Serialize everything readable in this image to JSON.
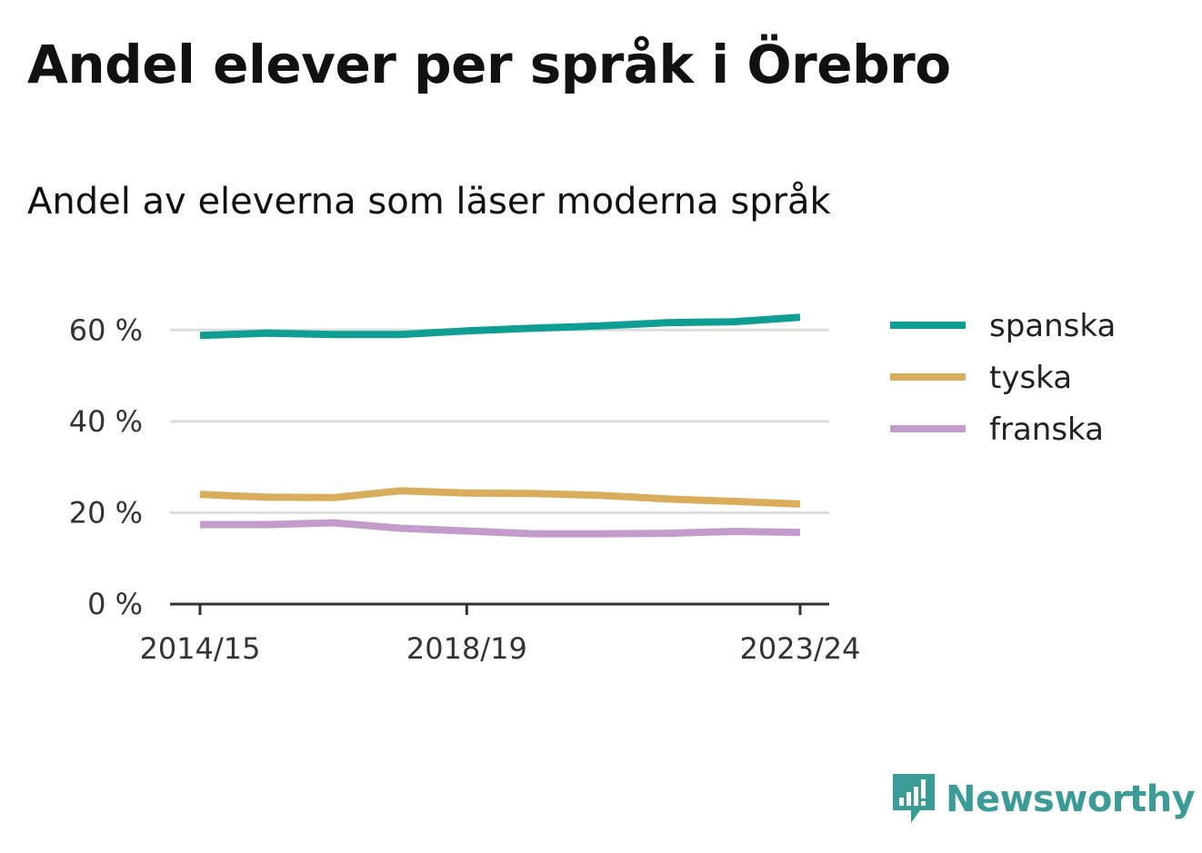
{
  "title": "Andel elever per språk i Örebro",
  "subtitle": "Andel av eleverna som läser moderna språk",
  "brand": {
    "name": "Newsworthy",
    "color": "#3b9b96",
    "icon": "newsworthy-logo-icon"
  },
  "chart_data": {
    "type": "line",
    "x": [
      "2014/15",
      "2015/16",
      "2016/17",
      "2017/18",
      "2018/19",
      "2019/20",
      "2020/21",
      "2021/22",
      "2022/23",
      "2023/24"
    ],
    "x_tick_labels": [
      "2014/15",
      "2018/19",
      "2023/24"
    ],
    "y_ticks": [
      0,
      20,
      40,
      60
    ],
    "y_tick_labels": [
      "0 %",
      "20 %",
      "40 %",
      "60 %"
    ],
    "ylim": [
      0,
      70
    ],
    "grid": true,
    "legend_position": "right",
    "series": [
      {
        "name": "spanska",
        "color": "#0f9e94",
        "values": [
          58.8,
          59.3,
          59.0,
          59.0,
          59.8,
          60.4,
          60.9,
          61.6,
          61.8,
          62.8
        ]
      },
      {
        "name": "tyska",
        "color": "#d9ad5b",
        "values": [
          24.0,
          23.4,
          23.3,
          24.8,
          24.3,
          24.2,
          23.8,
          23.0,
          22.5,
          21.9
        ]
      },
      {
        "name": "franska",
        "color": "#c39ccb",
        "values": [
          17.4,
          17.4,
          17.8,
          16.6,
          16.0,
          15.4,
          15.4,
          15.5,
          15.9,
          15.7
        ]
      }
    ]
  }
}
